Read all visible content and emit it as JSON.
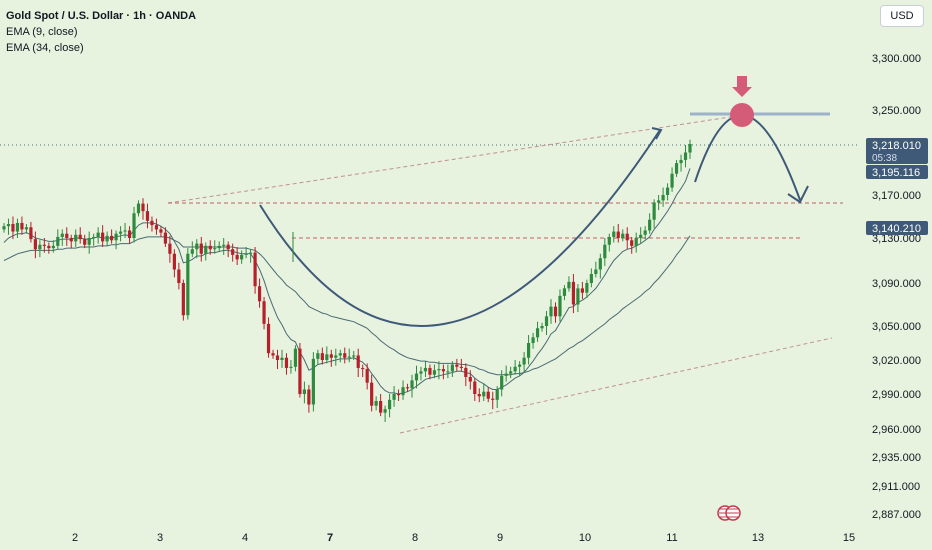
{
  "header": {
    "title": "Gold Spot / U.S. Dollar · 1h · OANDA",
    "indicators": [
      "EMA (9, close)",
      "EMA (34, close)"
    ],
    "currency_button": "USD"
  },
  "colors": {
    "background": "#e7f2df",
    "up": "#2e8b3e",
    "down": "#b5202b",
    "wick_up": "#2e8b3e",
    "wick_down": "#b5202b",
    "ema_line": "#4a6b73",
    "drawing": "#3e5a78",
    "dashed_red": "#c06060",
    "marker": "#d45c78",
    "price_tag": "#3e5a78",
    "dotted": "#4a6b73"
  },
  "chart_data": {
    "type": "candlestick",
    "symbol": "Gold Spot / U.S. Dollar",
    "interval": "1h",
    "source": "OANDA",
    "y_ticks": [
      "3,300.000",
      "3,250.000",
      "3,170.000",
      "3,130.000",
      "3,090.000",
      "3,050.000",
      "3,020.000",
      "2,990.000",
      "2,960.000",
      "2,935.000",
      "2,911.000",
      "2,887.000"
    ],
    "x_ticks": [
      "2",
      "3",
      "4",
      "7",
      "8",
      "9",
      "10",
      "11",
      "13",
      "15"
    ],
    "x_tick_bold": "7",
    "price_labels": [
      {
        "value": "3,218.010",
        "sub": "05:38",
        "kind": "last"
      },
      {
        "value": "3,195.116",
        "kind": "ema"
      },
      {
        "value": "3,140.210",
        "kind": "level"
      }
    ],
    "close_path": [
      3141,
      3143,
      3136,
      3144,
      3138,
      3140,
      3129,
      3120,
      3124,
      3123,
      3121,
      3123,
      3131,
      3134,
      3130,
      3127,
      3133,
      3129,
      3124,
      3130,
      3131,
      3135,
      3127,
      3132,
      3128,
      3134,
      3136,
      3137,
      3130,
      3153,
      3162,
      3155,
      3146,
      3142,
      3138,
      3135,
      3125,
      3116,
      3102,
      3090,
      3060,
      3116,
      3120,
      3125,
      3116,
      3123,
      3120,
      3121,
      3123,
      3124,
      3120,
      3115,
      3111,
      3115,
      3116,
      3117,
      3087,
      3073,
      3052,
      3026,
      3024,
      3020,
      3022,
      3013,
      3014,
      3030,
      2990,
      2994,
      2981,
      3021,
      3026,
      3020,
      3025,
      3022,
      3024,
      3026,
      3022,
      3023,
      3024,
      3013,
      3012,
      3000,
      2980,
      2984,
      2974,
      2977,
      2985,
      2990,
      2989,
      2996,
      2995,
      3002,
      3008,
      3010,
      3013,
      3007,
      3011,
      3012,
      3010,
      3010,
      3016,
      3014,
      3013,
      3005,
      3001,
      2990,
      2988,
      2992,
      2986,
      2985,
      2994,
      3006,
      3008,
      3010,
      3014,
      3016,
      3022,
      3035,
      3040,
      3048,
      3050,
      3059,
      3068,
      3059,
      3078,
      3085,
      3091,
      3070,
      3085,
      3081,
      3090,
      3098,
      3102,
      3112,
      3124,
      3131,
      3136,
      3130,
      3134,
      3128,
      3123,
      3130,
      3133,
      3137,
      3147,
      3163,
      3165,
      3170,
      3177,
      3190,
      3200,
      3203,
      3210,
      3218
    ],
    "ema9_path": [
      3126,
      3130,
      3132,
      3134,
      3134,
      3135,
      3133,
      3130,
      3129,
      3128,
      3127,
      3127,
      3128,
      3129,
      3129,
      3129,
      3130,
      3130,
      3129,
      3129,
      3130,
      3131,
      3130,
      3130,
      3130,
      3131,
      3132,
      3133,
      3132,
      3137,
      3142,
      3144,
      3144,
      3144,
      3143,
      3141,
      3138,
      3134,
      3127,
      3120,
      3108,
      3109,
      3111,
      3114,
      3114,
      3116,
      3117,
      3117,
      3118,
      3119,
      3119,
      3118,
      3117,
      3116,
      3116,
      3116,
      3110,
      3102,
      3092,
      3079,
      3068,
      3058,
      3051,
      3043,
      3038,
      3036,
      3027,
      3020,
      3011,
      3013,
      3016,
      3017,
      3018,
      3019,
      3020,
      3021,
      3021,
      3021,
      3022,
      3020,
      3018,
      3014,
      3008,
      3003,
      2997,
      2993,
      2991,
      2991,
      2990,
      2991,
      2992,
      2994,
      2997,
      3000,
      3003,
      3004,
      3005,
      3006,
      3007,
      3008,
      3009,
      3010,
      3010,
      3009,
      3008,
      3004,
      3001,
      2999,
      2996,
      2994,
      2994,
      2996,
      2998,
      3001,
      3004,
      3006,
      3009,
      3014,
      3019,
      3025,
      3030,
      3036,
      3043,
      3046,
      3053,
      3060,
      3067,
      3068,
      3072,
      3074,
      3077,
      3081,
      3085,
      3091,
      3097,
      3104,
      3110,
      3114,
      3118,
      3120,
      3121,
      3123,
      3125,
      3128,
      3131,
      3138,
      3143,
      3149,
      3155,
      3162,
      3170,
      3176,
      3183,
      3195
    ],
    "ema34_path": [
      3110,
      3112,
      3114,
      3116,
      3117,
      3118,
      3119,
      3119,
      3119,
      3119,
      3119,
      3119,
      3120,
      3120,
      3121,
      3121,
      3121,
      3122,
      3122,
      3122,
      3122,
      3123,
      3123,
      3123,
      3124,
      3124,
      3125,
      3125,
      3125,
      3127,
      3129,
      3130,
      3131,
      3131,
      3131,
      3131,
      3131,
      3130,
      3128,
      3126,
      3122,
      3122,
      3122,
      3122,
      3122,
      3122,
      3122,
      3122,
      3122,
      3122,
      3122,
      3122,
      3121,
      3121,
      3121,
      3120,
      3119,
      3116,
      3112,
      3107,
      3102,
      3097,
      3093,
      3088,
      3085,
      3082,
      3077,
      3073,
      3068,
      3066,
      3064,
      3062,
      3061,
      3059,
      3058,
      3057,
      3056,
      3055,
      3054,
      3052,
      3050,
      3048,
      3044,
      3041,
      3037,
      3034,
      3031,
      3029,
      3026,
      3024,
      3022,
      3021,
      3020,
      3019,
      3019,
      3018,
      3018,
      3017,
      3017,
      3017,
      3017,
      3017,
      3016,
      3016,
      3015,
      3014,
      3012,
      3011,
      3009,
      3008,
      3007,
      3007,
      3007,
      3007,
      3008,
      3008,
      3009,
      3010,
      3012,
      3013,
      3015,
      3017,
      3019,
      3021,
      3024,
      3027,
      3030,
      3032,
      3035,
      3037,
      3040,
      3043,
      3046,
      3049,
      3052,
      3056,
      3059,
      3062,
      3066,
      3069,
      3072,
      3075,
      3078,
      3082,
      3085,
      3090,
      3094,
      3099,
      3104,
      3109,
      3115,
      3120,
      3126,
      3132
    ],
    "drawings": {
      "rounded_bottom_arc": "cup projection",
      "projected_arc_down": "peak then decline",
      "resistance_levels": [
        "3,170.000",
        "3,140.210"
      ],
      "marker": "down arrow at projected peak",
      "horizontal_top_line": "3,250.000"
    }
  }
}
